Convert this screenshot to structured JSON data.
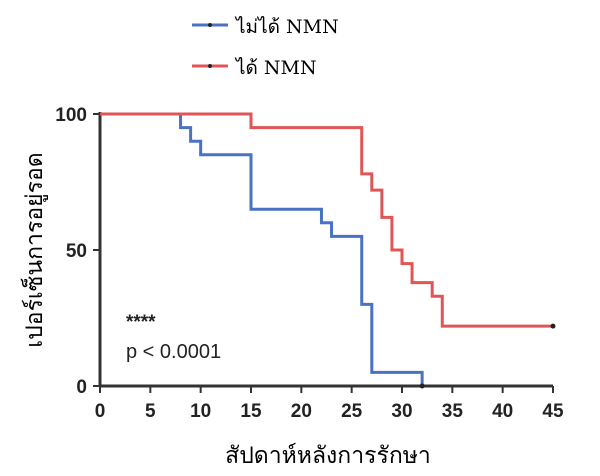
{
  "chart_data": {
    "type": "line",
    "subtype": "kaplan-meier-step",
    "xlabel": "สัปดาห์หลังการรักษา",
    "ylabel": "เปอร์เซ็นการอยู่รอด",
    "xlim": [
      0,
      45
    ],
    "ylim": [
      0,
      100
    ],
    "xticks": [
      0,
      5,
      10,
      15,
      20,
      25,
      30,
      35,
      40,
      45
    ],
    "yticks": [
      0,
      50,
      100
    ],
    "grid": false,
    "legend_position": "top",
    "annotations": {
      "significance": "****",
      "p_value": "p < 0.0001"
    },
    "series": [
      {
        "name": "ไม่ได้ NMN",
        "color": "#4a72c4",
        "points": [
          [
            0,
            100
          ],
          [
            8,
            100
          ],
          [
            8,
            95
          ],
          [
            9,
            95
          ],
          [
            9,
            90
          ],
          [
            10,
            90
          ],
          [
            10,
            85
          ],
          [
            15,
            85
          ],
          [
            15,
            65
          ],
          [
            22,
            65
          ],
          [
            22,
            60
          ],
          [
            23,
            60
          ],
          [
            23,
            55
          ],
          [
            26,
            55
          ],
          [
            26,
            30
          ],
          [
            27,
            30
          ],
          [
            27,
            5
          ],
          [
            32,
            5
          ],
          [
            32,
            0
          ]
        ]
      },
      {
        "name": "ได้ NMN",
        "color": "#e05555",
        "points": [
          [
            0,
            100
          ],
          [
            15,
            100
          ],
          [
            15,
            95
          ],
          [
            26,
            95
          ],
          [
            26,
            78
          ],
          [
            27,
            78
          ],
          [
            27,
            72
          ],
          [
            28,
            72
          ],
          [
            28,
            62
          ],
          [
            29,
            62
          ],
          [
            29,
            50
          ],
          [
            30,
            50
          ],
          [
            30,
            45
          ],
          [
            31,
            45
          ],
          [
            31,
            38
          ],
          [
            33,
            38
          ],
          [
            33,
            33
          ],
          [
            34,
            33
          ],
          [
            34,
            22
          ],
          [
            45,
            22
          ]
        ]
      }
    ]
  }
}
